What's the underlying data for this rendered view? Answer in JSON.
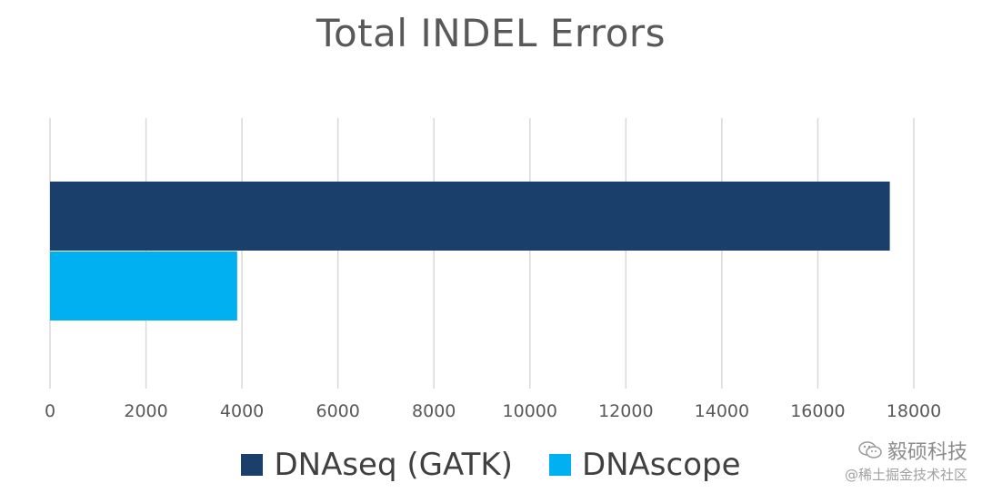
{
  "chart_data": {
    "type": "bar",
    "orientation": "horizontal",
    "title": "Total INDEL Errors",
    "xlabel": "",
    "ylabel": "",
    "xlim": [
      0,
      18000
    ],
    "xticks": [
      0,
      2000,
      4000,
      6000,
      8000,
      10000,
      12000,
      14000,
      16000,
      18000
    ],
    "grid": true,
    "legend_position": "bottom",
    "series": [
      {
        "name": "DNAseq (GATK)",
        "values": [
          17500
        ],
        "color": "#1B3F6B"
      },
      {
        "name": "DNAscope",
        "values": [
          3900
        ],
        "color": "#00B0F0"
      }
    ]
  },
  "watermark": {
    "brand": "毅硕科技",
    "sub": "@稀土掘金技术社区",
    "icon": "wechat-icon"
  }
}
